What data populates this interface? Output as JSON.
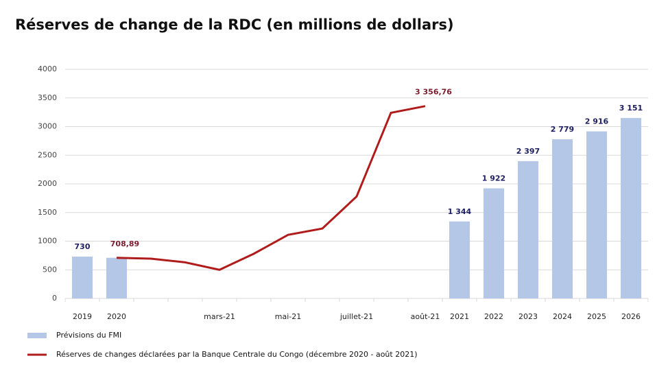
{
  "chart_data": {
    "type": "bar_line",
    "title": "Réserves de change de la RDC (en millions de dollars)",
    "categories": [
      "2019",
      "2020",
      null,
      null,
      "mars-21",
      null,
      "mai-21",
      null,
      "juillet-21",
      null,
      "août-21",
      "2021",
      "2022",
      "2023",
      "2024",
      "2025",
      "2026"
    ],
    "series": [
      {
        "name": "Prévisions du FMI",
        "type": "bar",
        "color": "#b4c7e7",
        "values": [
          730,
          710,
          null,
          null,
          null,
          null,
          null,
          null,
          null,
          null,
          null,
          1344,
          1922,
          2397,
          2779,
          2916,
          3151
        ],
        "value_labels": [
          "730",
          null,
          null,
          null,
          null,
          null,
          null,
          null,
          null,
          null,
          null,
          "1 344",
          "1 922",
          "2 397",
          "2 779",
          "2 916",
          "3 151"
        ],
        "label_color": "#1f2060"
      },
      {
        "name": "Réserves de changes déclarées par la Banque Centrale du Congo (décembre 2020 - août 2021)",
        "type": "line",
        "color": "#b01c1c",
        "values": [
          null,
          708.89,
          695,
          630,
          500,
          780,
          1110,
          1220,
          1780,
          3240,
          3356.76,
          null,
          null,
          null,
          null,
          null,
          null
        ],
        "value_labels": [
          null,
          "708,89",
          null,
          null,
          null,
          null,
          null,
          null,
          null,
          null,
          "3 356,76",
          null,
          null,
          null,
          null,
          null,
          null
        ],
        "label_color": "#7b1c2e"
      }
    ],
    "ylim": [
      0,
      4000
    ],
    "yticks": [
      0,
      500,
      1000,
      1500,
      2000,
      2500,
      3000,
      3500,
      4000
    ],
    "grid": true
  }
}
